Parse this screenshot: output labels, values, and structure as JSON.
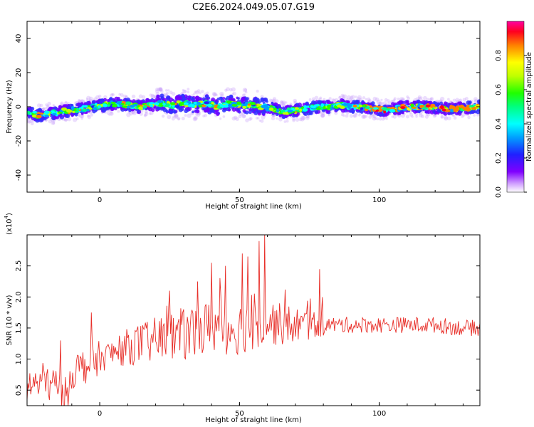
{
  "title": "C2E6.2024.049.05.07.G19",
  "colors": {
    "snr_line": "#e8302a",
    "axes": "#000000",
    "background": "#ffffff"
  },
  "chart_data": [
    {
      "type": "heatmap",
      "xlabel": "Height of straight line (km)",
      "ylabel": "Frequency (Hz)",
      "xlim": [
        -26,
        136
      ],
      "ylim": [
        -50,
        50
      ],
      "xticks": [
        0,
        50,
        100
      ],
      "yticks": [
        -40,
        -20,
        0,
        20,
        40
      ],
      "ytick_labels": [
        "-40",
        "-20",
        "0",
        "20",
        "40"
      ],
      "colorbar": {
        "label": "Normalized spectral amplitude",
        "range": [
          0,
          1
        ],
        "ticks": [
          0.0,
          0.2,
          0.4,
          0.6,
          0.8
        ],
        "tick_labels": [
          "0.0",
          "0.2",
          "0.4",
          "0.6",
          "0.8"
        ],
        "colormap": "hsv-rainbow"
      },
      "ridge": {
        "x": [
          -26,
          -22,
          -18,
          -14,
          -10,
          -6,
          -2,
          2,
          6,
          10,
          14,
          18,
          22,
          26,
          30,
          34,
          38,
          42,
          46,
          50,
          54,
          58,
          62,
          66,
          70,
          74,
          78,
          82,
          86,
          90,
          94,
          98,
          102,
          106,
          110,
          114,
          118,
          122,
          126,
          130,
          136
        ],
        "frequency_hz": [
          -3,
          -5,
          -4,
          -3,
          -2,
          -1,
          0,
          1,
          2,
          1,
          0,
          1,
          2,
          1,
          2,
          1,
          2,
          0,
          2,
          1,
          1,
          0,
          -1,
          -3,
          -2,
          -1,
          0,
          0,
          1,
          0,
          0,
          -1,
          -2,
          -1,
          0,
          0,
          0,
          -1,
          -1,
          -1,
          0
        ]
      }
    },
    {
      "type": "line",
      "xlabel": "Height of straight line (km)",
      "ylabel": "SNR (10 * v/v)",
      "y_multiplier": "(x10",
      "y_multiplier_exp": "4",
      "xlim": [
        -26,
        136
      ],
      "ylim": [
        0.25,
        3.0
      ],
      "xticks": [
        0,
        50,
        100
      ],
      "yticks": [
        0.5,
        1.0,
        1.5,
        2.0,
        2.5
      ],
      "ytick_labels": [
        "0.5",
        "1.0",
        "1.5",
        "2.0",
        "2.5"
      ],
      "trend": {
        "x": [
          -26,
          -20,
          -15,
          -12,
          -10,
          -5,
          0,
          5,
          10,
          15,
          20,
          25,
          30,
          35,
          40,
          45,
          50,
          55,
          60,
          65,
          70,
          80,
          90,
          100,
          110,
          120,
          130,
          136
        ],
        "y": [
          0.55,
          0.65,
          0.55,
          0.4,
          0.8,
          0.9,
          1.0,
          1.1,
          1.2,
          1.25,
          1.3,
          1.35,
          1.4,
          1.45,
          1.5,
          1.5,
          1.5,
          1.55,
          1.6,
          1.55,
          1.55,
          1.55,
          1.55,
          1.55,
          1.55,
          1.55,
          1.5,
          1.5
        ]
      },
      "peaks": [
        {
          "x": 59,
          "y": 3.0
        },
        {
          "x": 57,
          "y": 2.9
        },
        {
          "x": 51,
          "y": 2.7
        },
        {
          "x": 40,
          "y": 2.55
        },
        {
          "x": 45,
          "y": 2.5
        },
        {
          "x": 53,
          "y": 2.65
        },
        {
          "x": 25,
          "y": 2.1
        },
        {
          "x": 35,
          "y": 2.25
        },
        {
          "x": -3,
          "y": 1.75
        },
        {
          "x": -14,
          "y": 1.3
        }
      ]
    }
  ]
}
